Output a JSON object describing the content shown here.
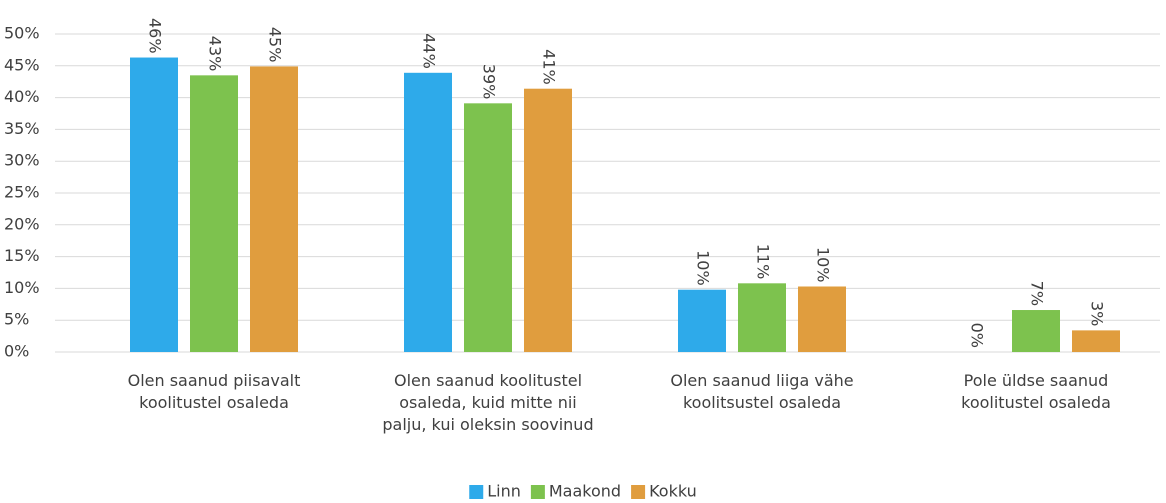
{
  "chart_data": {
    "type": "bar",
    "categories": [
      "Olen saanud piisavalt\nkoolitustel osaleda",
      "Olen saanud koolitustel\nosaleda, kuid mitte nii\npalju, kui oleksin soovinud",
      "Olen saanud liiga vähe\nkoolitsustel osaleda",
      "Pole üldse saanud\nkoolitustel osaleda"
    ],
    "series": [
      {
        "name": "Linn",
        "color": "#2eaaea",
        "values": [
          46.3,
          43.9,
          9.8,
          0
        ],
        "value_labels": [
          "46%",
          "44%",
          "10%",
          "0%"
        ]
      },
      {
        "name": "Maakond",
        "color": "#7dc24e",
        "values": [
          43.5,
          39.1,
          10.8,
          6.6
        ],
        "value_labels": [
          "43%",
          "39%",
          "11%",
          "7%"
        ]
      },
      {
        "name": "Kokku",
        "color": "#e09d3e",
        "values": [
          44.9,
          41.4,
          10.3,
          3.4
        ],
        "value_labels": [
          "45%",
          "41%",
          "10%",
          "3%"
        ]
      }
    ],
    "ylim": [
      0,
      50
    ],
    "yticks": [
      {
        "value": 0,
        "label": "0%"
      },
      {
        "value": 5,
        "label": "5%"
      },
      {
        "value": 10,
        "label": "10%"
      },
      {
        "value": 15,
        "label": "15%"
      },
      {
        "value": 20,
        "label": "20%"
      },
      {
        "value": 25,
        "label": "25%"
      },
      {
        "value": 30,
        "label": "30%"
      },
      {
        "value": 35,
        "label": "35%"
      },
      {
        "value": 40,
        "label": "40%"
      },
      {
        "value": 45,
        "label": "45%"
      },
      {
        "value": 50,
        "label": "50%"
      }
    ],
    "grid": true,
    "legend": "bottom"
  }
}
